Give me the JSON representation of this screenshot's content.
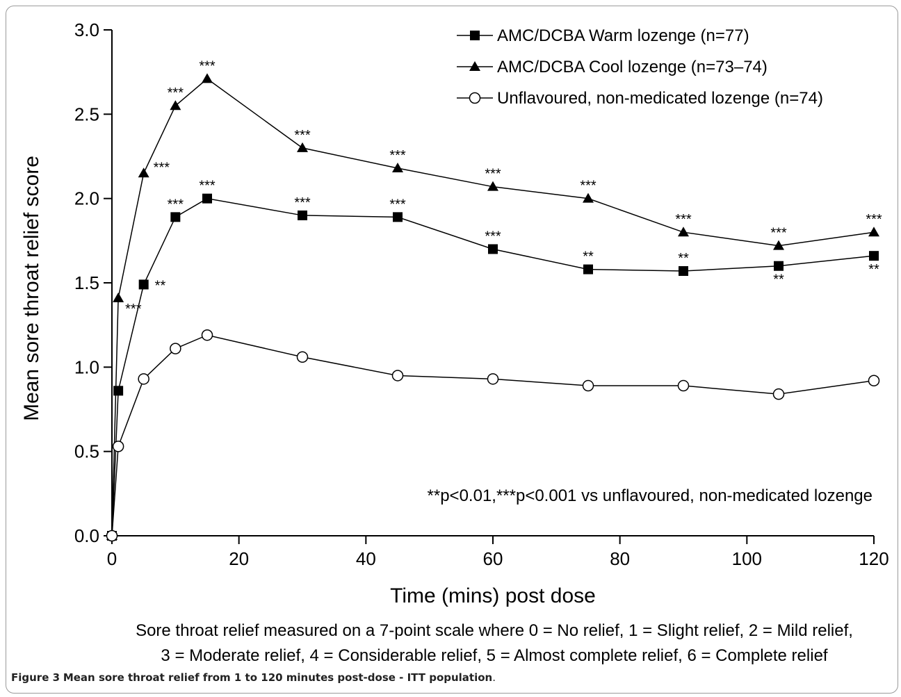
{
  "chart_data": {
    "type": "line",
    "title": "",
    "xlabel": "Time (mins) post dose",
    "ylabel": "Mean sore throat relief score",
    "xlim": [
      0,
      120
    ],
    "ylim": [
      0,
      3.0
    ],
    "x_ticks": [
      "0",
      "20",
      "40",
      "60",
      "80",
      "100",
      "120"
    ],
    "y_ticks": [
      "0.0",
      "0.5",
      "1.0",
      "1.5",
      "2.0",
      "2.5",
      "3.0"
    ],
    "grid": false,
    "legend_position": "top-right",
    "x": [
      0,
      1,
      5,
      10,
      15,
      30,
      45,
      60,
      75,
      90,
      105,
      120
    ],
    "series": [
      {
        "name": "AMC/DCBA Warm lozenge (n=77)",
        "marker": "square",
        "values": [
          0,
          0.86,
          1.49,
          1.89,
          2.0,
          1.9,
          1.89,
          1.7,
          1.58,
          1.57,
          1.6,
          1.66
        ],
        "significance": [
          "",
          "",
          "**",
          "***",
          "***",
          "***",
          "***",
          "***",
          "**",
          "**",
          "**",
          "**"
        ]
      },
      {
        "name": "AMC/DCBA Cool lozenge (n=73–74)",
        "marker": "triangle",
        "values": [
          0,
          1.41,
          2.15,
          2.55,
          2.71,
          2.3,
          2.18,
          2.07,
          2.0,
          1.8,
          1.72,
          1.8
        ],
        "significance": [
          "",
          "***",
          "***",
          "***",
          "***",
          "***",
          "***",
          "***",
          "***",
          "***",
          "***",
          "***"
        ]
      },
      {
        "name": "Unflavoured, non-medicated lozenge (n=74)",
        "marker": "circle",
        "values": [
          0,
          0.53,
          0.93,
          1.11,
          1.19,
          1.06,
          0.95,
          0.93,
          0.89,
          0.89,
          0.84,
          0.92
        ],
        "significance": [
          "",
          "",
          "",
          "",
          "",
          "",
          "",
          "",
          "",
          "",
          "",
          ""
        ]
      }
    ],
    "annotation": "**p<0.01,***p<0.001 vs unflavoured, non-medicated lozenge",
    "footnote_lines": [
      "Sore throat relief measured on a 7-point scale where 0 = No relief, 1 = Slight relief, 2 = Mild relief,",
      "3 = Moderate relief, 4 = Considerable relief, 5 = Almost complete relief, 6 = Complete relief"
    ]
  },
  "caption": {
    "label": "Figure 3",
    "text": "Mean sore throat relief from 1 to 120 minutes post-dose - ITT population",
    "end": "."
  }
}
